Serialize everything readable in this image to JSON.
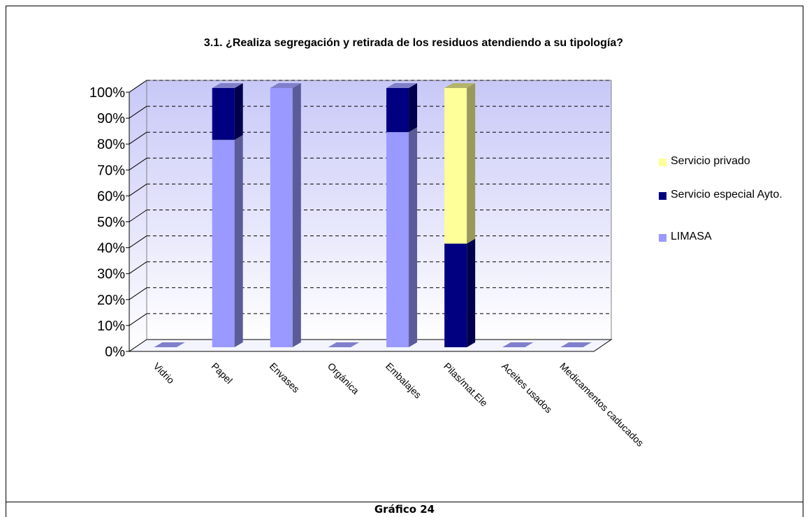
{
  "chart_data": {
    "type": "bar3d_stacked",
    "title": "3.1. ¿Realiza segregación y retirada de los residuos atendiendo a su tipología?",
    "caption": "Gráfico 24",
    "categories": [
      "Vidrio",
      "Papel",
      "Envases",
      "Orgánica",
      "Embalajes",
      "Pilas/mat.Ele",
      "Aceites usados",
      "Medicamentos caducados"
    ],
    "series": [
      {
        "name": "LIMASA",
        "color": "#9999ff",
        "values": [
          0,
          80,
          100,
          0,
          83,
          0,
          0,
          0
        ]
      },
      {
        "name": "Servicio especial Ayto.",
        "color": "#000080",
        "values": [
          0,
          20,
          0,
          0,
          17,
          40,
          0,
          0
        ]
      },
      {
        "name": "Servicio privado",
        "color": "#ffff99",
        "values": [
          0,
          0,
          0,
          0,
          0,
          60,
          0,
          0
        ]
      }
    ],
    "ylim": [
      0,
      100
    ],
    "yticks": [
      {
        "value": 0,
        "label": "0%"
      },
      {
        "value": 10,
        "label": "10%"
      },
      {
        "value": 20,
        "label": "20%"
      },
      {
        "value": 30,
        "label": "30%"
      },
      {
        "value": 40,
        "label": "40%"
      },
      {
        "value": 50,
        "label": "50%"
      },
      {
        "value": 60,
        "label": "60%"
      },
      {
        "value": 70,
        "label": "70%"
      },
      {
        "value": 80,
        "label": "80%"
      },
      {
        "value": 90,
        "label": "90%"
      },
      {
        "value": 100,
        "label": "100%"
      }
    ],
    "grid": true,
    "legend": "right"
  }
}
